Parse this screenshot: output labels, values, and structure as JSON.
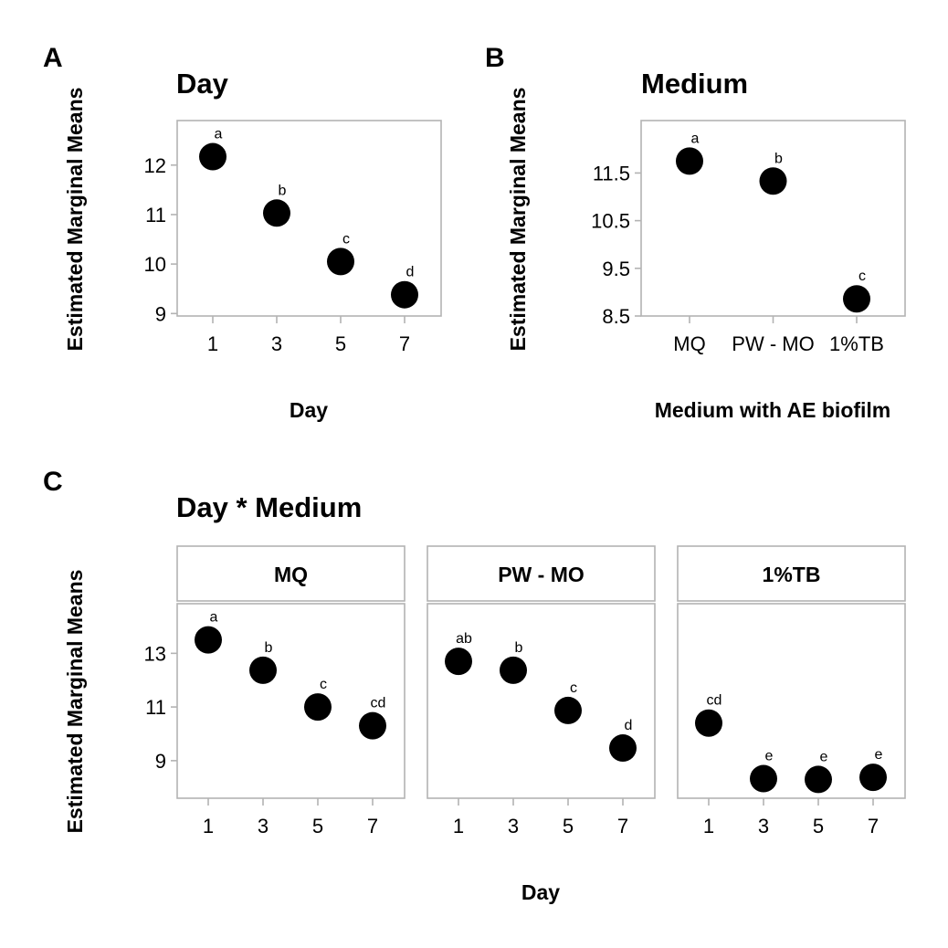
{
  "chart_data": [
    {
      "panel": "A",
      "type": "scatter",
      "title": "Day",
      "xlabel": "Day",
      "ylabel": "Estimated Marginal Means",
      "categories": [
        "1",
        "3",
        "5",
        "7"
      ],
      "values": [
        12.17,
        11.03,
        10.05,
        9.38
      ],
      "labels": [
        "a",
        "b",
        "c",
        "d"
      ],
      "yticks": [
        9,
        10,
        11,
        12
      ],
      "ytick_labels": [
        "9",
        "10",
        "11",
        "12"
      ],
      "ylim": [
        8.95,
        12.9
      ]
    },
    {
      "panel": "B",
      "type": "scatter",
      "title": "Medium",
      "xlabel": "Medium with AE biofilm",
      "ylabel": "Estimated Marginal Means",
      "categories": [
        "MQ",
        "PW - MO",
        "1%TB"
      ],
      "values": [
        11.75,
        11.33,
        8.86
      ],
      "labels": [
        "a",
        "b",
        "c"
      ],
      "yticks": [
        8.5,
        9.5,
        10.5,
        11.5
      ],
      "ytick_labels": [
        "8.5",
        "9.5",
        "10.5",
        "11.5"
      ],
      "ylim": [
        8.5,
        12.6
      ]
    },
    {
      "panel": "C",
      "type": "scatter",
      "title": "Day * Medium",
      "xlabel": "Day",
      "ylabel": "Estimated Marginal Means",
      "categories": [
        "1",
        "3",
        "5",
        "7"
      ],
      "yticks": [
        9,
        11,
        13
      ],
      "ytick_labels": [
        "9",
        "11",
        "13"
      ],
      "ylim": [
        7.6,
        14.85
      ],
      "facets": [
        {
          "name": "MQ",
          "values": [
            13.5,
            12.37,
            11.0,
            10.3
          ],
          "labels": [
            "a",
            "b",
            "c",
            "cd"
          ]
        },
        {
          "name": "PW - MO",
          "values": [
            12.7,
            12.37,
            10.87,
            9.47
          ],
          "labels": [
            "ab",
            "b",
            "c",
            "d"
          ]
        },
        {
          "name": "1%TB",
          "values": [
            10.4,
            8.33,
            8.3,
            8.38
          ],
          "labels": [
            "cd",
            "e",
            "e",
            "e"
          ]
        }
      ]
    }
  ]
}
